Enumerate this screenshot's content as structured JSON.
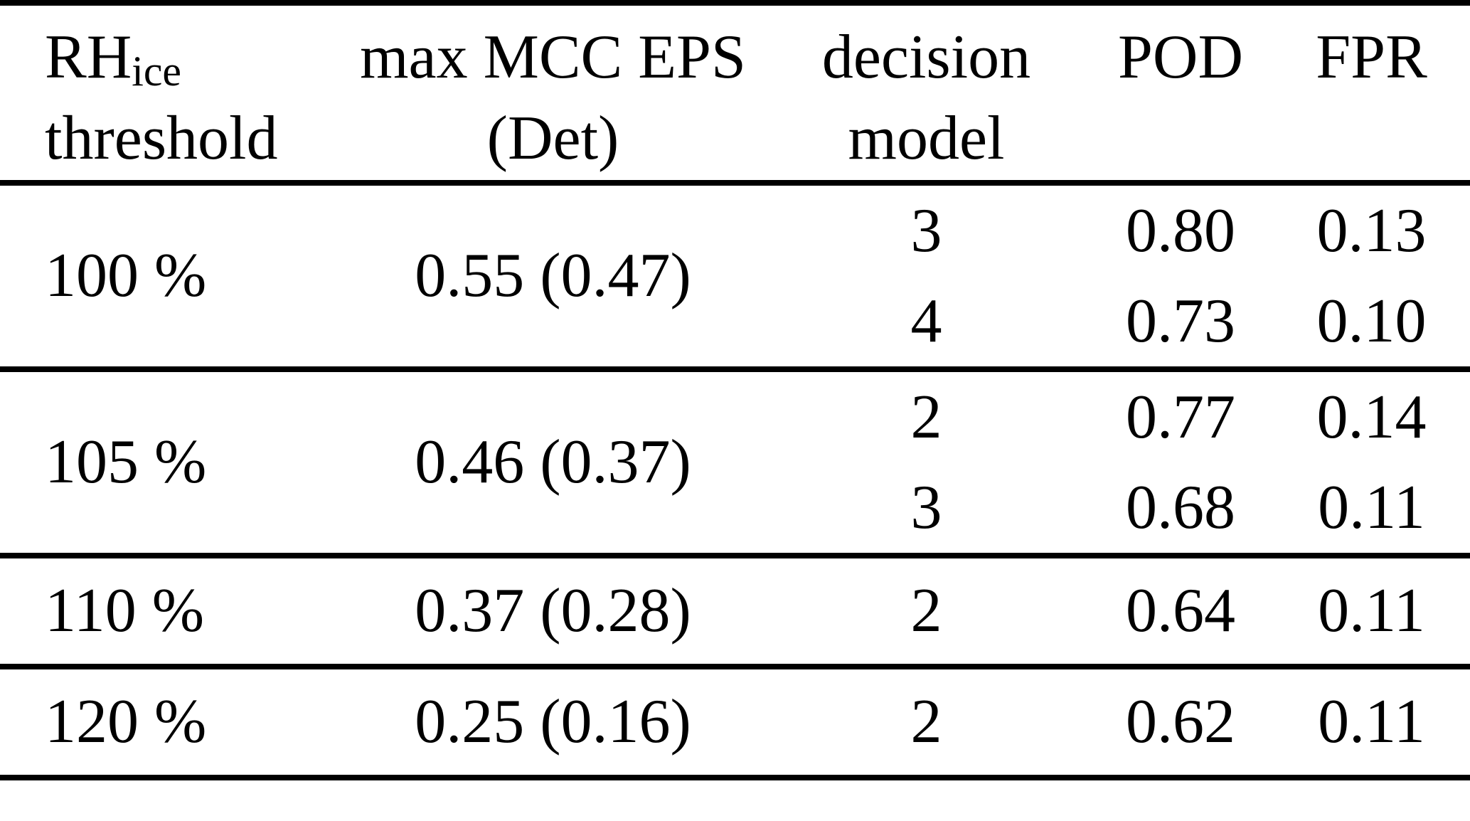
{
  "document": {
    "kind": "paper-table",
    "background_color": "#ffffff",
    "text_color": "#000000",
    "rule_color": "#000000"
  },
  "table": {
    "headers": {
      "rh": {
        "main": "RH",
        "sub": "ice",
        "line2": "threshold"
      },
      "mcc": {
        "line1": "max MCC EPS",
        "line2": "(Det)"
      },
      "decision": {
        "line1": "decision",
        "line2": "model"
      },
      "pod": {
        "label": "POD"
      },
      "fpr": {
        "label": "FPR"
      }
    },
    "blocks": [
      {
        "threshold": "100 %",
        "mcc": "0.55 (0.47)",
        "rows": [
          {
            "model": "3",
            "pod": "0.80",
            "fpr": "0.13"
          },
          {
            "model": "4",
            "pod": "0.73",
            "fpr": "0.10"
          }
        ]
      },
      {
        "threshold": "105 %",
        "mcc": "0.46 (0.37)",
        "rows": [
          {
            "model": "2",
            "pod": "0.77",
            "fpr": "0.14"
          },
          {
            "model": "3",
            "pod": "0.68",
            "fpr": "0.11"
          }
        ]
      },
      {
        "threshold": "110 %",
        "mcc": "0.37 (0.28)",
        "rows": [
          {
            "model": "2",
            "pod": "0.64",
            "fpr": "0.11"
          }
        ]
      },
      {
        "threshold": "120 %",
        "mcc": "0.25 (0.16)",
        "rows": [
          {
            "model": "2",
            "pod": "0.62",
            "fpr": "0.11"
          }
        ]
      }
    ]
  }
}
